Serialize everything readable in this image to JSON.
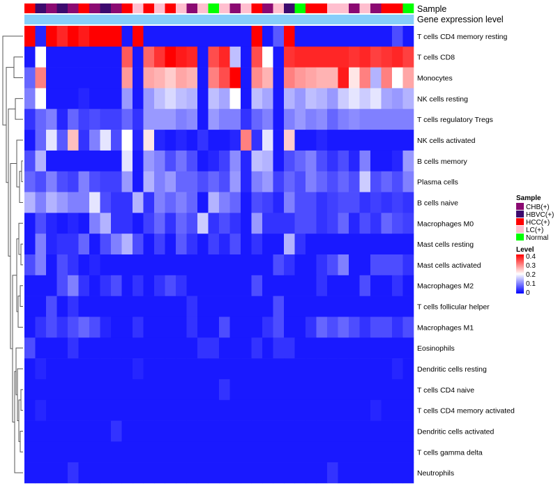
{
  "chart_data": {
    "type": "heatmap",
    "title": "",
    "annotation_labels": {
      "sample": "Sample",
      "level": "Gene expression level"
    },
    "rows": [
      "T cells CD4 memory resting",
      "T cells CD8",
      "Monocytes",
      "NK cells resting",
      "T cells regulatory  Tregs",
      "NK cells activated",
      "B cells memory",
      "Plasma cells",
      "B cells naive",
      "Macrophages M0",
      "Mast cells resting",
      "Mast cells activated",
      "Macrophages M2",
      "T cells follicular helper",
      "Macrophages M1",
      "Eosinophils",
      "Dendritic cells resting",
      "T cells CD4 naive",
      "T cells CD4 memory activated",
      "Dendritic cells activated",
      "T cells gamma delta",
      "Neutrophils"
    ],
    "sample_groups": [
      "HCC(+)",
      "HBVC(+)",
      "CHB(+)",
      "HBVC(+)",
      "CHB(+)",
      "HCC(+)",
      "CHB(+)",
      "HBVC(+)",
      "CHB(+)",
      "HCC(+)",
      "LC(+)",
      "HCC(+)",
      "LC(+)",
      "HCC(+)",
      "LC(+)",
      "CHB(+)",
      "LC(+)",
      "Normal",
      "LC(+)",
      "CHB(+)",
      "LC(+)",
      "HCC(+)",
      "CHB(+)",
      "LC(+)",
      "HBVC(+)",
      "Normal",
      "HCC(+)",
      "HCC(+)",
      "LC(+)",
      "LC(+)",
      "CHB(+)",
      "LC(+)",
      "CHB(+)",
      "HCC(+)",
      "HCC(+)",
      "Normal"
    ],
    "level_values": [
      0.05,
      0.05,
      0.05,
      0.05,
      0.05,
      0.05,
      0.05,
      0.05,
      0.05,
      0.05,
      0.05,
      0.05,
      0.05,
      0.05,
      0.05,
      0.05,
      0.05,
      0.05,
      0.05,
      0.05,
      0.05,
      0.05,
      0.05,
      0.05,
      0.05,
      0.05,
      0.05,
      0.05,
      0.05,
      0.05,
      0.05,
      0.05,
      0.05,
      0.05,
      0.05,
      0.05
    ],
    "values": [
      [
        0.4,
        0.03,
        0.4,
        0.37,
        0.4,
        0.38,
        0.4,
        0.4,
        0.4,
        0.02,
        0.4,
        0.02,
        0.02,
        0.02,
        0.02,
        0.02,
        0.02,
        0.02,
        0.02,
        0.02,
        0.02,
        0.4,
        0.02,
        0.07,
        0.4,
        0.02,
        0.02,
        0.02,
        0.02,
        0.02,
        0.02,
        0.02,
        0.02,
        0.02,
        0.06,
        0.02
      ],
      [
        0.02,
        0.2,
        0.02,
        0.02,
        0.02,
        0.02,
        0.02,
        0.02,
        0.02,
        0.33,
        0.02,
        0.32,
        0.36,
        0.4,
        0.38,
        0.37,
        0.02,
        0.34,
        0.37,
        0.15,
        0.02,
        0.34,
        0.2,
        0.02,
        0.36,
        0.37,
        0.37,
        0.37,
        0.37,
        0.37,
        0.36,
        0.37,
        0.35,
        0.36,
        0.37,
        0.35
      ],
      [
        0.08,
        0.3,
        0.02,
        0.02,
        0.02,
        0.02,
        0.02,
        0.02,
        0.02,
        0.28,
        0.02,
        0.27,
        0.26,
        0.24,
        0.27,
        0.26,
        0.02,
        0.3,
        0.34,
        0.4,
        0.02,
        0.29,
        0.26,
        0.02,
        0.3,
        0.28,
        0.27,
        0.26,
        0.26,
        0.38,
        0.22,
        0.3,
        0.14,
        0.3,
        0.2,
        0.27
      ],
      [
        0.1,
        0.2,
        0.02,
        0.02,
        0.02,
        0.03,
        0.02,
        0.02,
        0.02,
        0.12,
        0.02,
        0.12,
        0.15,
        0.17,
        0.15,
        0.14,
        0.02,
        0.15,
        0.13,
        0.2,
        0.02,
        0.15,
        0.13,
        0.02,
        0.14,
        0.12,
        0.15,
        0.14,
        0.12,
        0.16,
        0.18,
        0.16,
        0.18,
        0.13,
        0.12,
        0.14
      ],
      [
        0.04,
        0.08,
        0.1,
        0.03,
        0.08,
        0.05,
        0.06,
        0.05,
        0.05,
        0.08,
        0.04,
        0.12,
        0.12,
        0.12,
        0.1,
        0.11,
        0.02,
        0.12,
        0.1,
        0.1,
        0.04,
        0.08,
        0.1,
        0.02,
        0.1,
        0.12,
        0.1,
        0.11,
        0.08,
        0.1,
        0.11,
        0.1,
        0.1,
        0.1,
        0.1,
        0.1
      ],
      [
        0.02,
        0.08,
        0.18,
        0.07,
        0.25,
        0.04,
        0.1,
        0.18,
        0.06,
        0.2,
        0.03,
        0.22,
        0.03,
        0.02,
        0.03,
        0.02,
        0.04,
        0.02,
        0.02,
        0.03,
        0.3,
        0.04,
        0.18,
        0.02,
        0.24,
        0.02,
        0.02,
        0.03,
        0.02,
        0.02,
        0.02,
        0.02,
        0.02,
        0.02,
        0.02,
        0.02
      ],
      [
        0.06,
        0.14,
        0.02,
        0.02,
        0.02,
        0.02,
        0.02,
        0.02,
        0.02,
        0.18,
        0.02,
        0.12,
        0.1,
        0.06,
        0.09,
        0.06,
        0.02,
        0.03,
        0.05,
        0.11,
        0.03,
        0.15,
        0.14,
        0.02,
        0.06,
        0.08,
        0.1,
        0.06,
        0.04,
        0.06,
        0.03,
        0.1,
        0.02,
        0.02,
        0.03,
        0.12
      ],
      [
        0.08,
        0.06,
        0.1,
        0.06,
        0.05,
        0.1,
        0.06,
        0.05,
        0.05,
        0.12,
        0.02,
        0.14,
        0.1,
        0.12,
        0.08,
        0.08,
        0.06,
        0.08,
        0.06,
        0.12,
        0.03,
        0.1,
        0.12,
        0.05,
        0.08,
        0.06,
        0.1,
        0.08,
        0.06,
        0.08,
        0.06,
        0.16,
        0.06,
        0.08,
        0.06,
        0.1
      ],
      [
        0.14,
        0.1,
        0.14,
        0.12,
        0.1,
        0.1,
        0.18,
        0.06,
        0.04,
        0.04,
        0.14,
        0.04,
        0.1,
        0.08,
        0.1,
        0.08,
        0.02,
        0.14,
        0.1,
        0.08,
        0.02,
        0.06,
        0.05,
        0.03,
        0.1,
        0.06,
        0.06,
        0.04,
        0.05,
        0.06,
        0.06,
        0.04,
        0.05,
        0.04,
        0.05,
        0.04
      ],
      [
        0.02,
        0.06,
        0.03,
        0.02,
        0.03,
        0.02,
        0.1,
        0.14,
        0.04,
        0.04,
        0.02,
        0.05,
        0.08,
        0.04,
        0.08,
        0.06,
        0.16,
        0.04,
        0.06,
        0.04,
        0.02,
        0.12,
        0.04,
        0.04,
        0.04,
        0.06,
        0.06,
        0.04,
        0.05,
        0.08,
        0.03,
        0.06,
        0.04,
        0.08,
        0.06,
        0.05
      ],
      [
        0.02,
        0.1,
        0.03,
        0.04,
        0.04,
        0.08,
        0.02,
        0.06,
        0.1,
        0.14,
        0.06,
        0.02,
        0.05,
        0.02,
        0.07,
        0.04,
        0.02,
        0.05,
        0.03,
        0.06,
        0.02,
        0.04,
        0.02,
        0.02,
        0.14,
        0.04,
        0.02,
        0.02,
        0.02,
        0.02,
        0.02,
        0.02,
        0.02,
        0.02,
        0.02,
        0.02
      ],
      [
        0.06,
        0.1,
        0.02,
        0.06,
        0.04,
        0.02,
        0.03,
        0.02,
        0.02,
        0.02,
        0.02,
        0.02,
        0.02,
        0.02,
        0.02,
        0.02,
        0.02,
        0.02,
        0.02,
        0.02,
        0.02,
        0.02,
        0.02,
        0.06,
        0.04,
        0.02,
        0.02,
        0.04,
        0.06,
        0.1,
        0.02,
        0.02,
        0.06,
        0.06,
        0.06,
        0.04
      ],
      [
        0.02,
        0.02,
        0.02,
        0.06,
        0.1,
        0.04,
        0.02,
        0.04,
        0.06,
        0.02,
        0.04,
        0.02,
        0.04,
        0.06,
        0.04,
        0.02,
        0.02,
        0.02,
        0.02,
        0.02,
        0.02,
        0.06,
        0.02,
        0.02,
        0.02,
        0.02,
        0.02,
        0.04,
        0.02,
        0.02,
        0.02,
        0.06,
        0.02,
        0.02,
        0.04,
        0.02
      ],
      [
        0.02,
        0.02,
        0.06,
        0.02,
        0.04,
        0.02,
        0.02,
        0.02,
        0.02,
        0.02,
        0.02,
        0.02,
        0.02,
        0.02,
        0.02,
        0.04,
        0.02,
        0.02,
        0.02,
        0.02,
        0.02,
        0.02,
        0.02,
        0.06,
        0.02,
        0.02,
        0.02,
        0.02,
        0.02,
        0.02,
        0.02,
        0.02,
        0.02,
        0.02,
        0.02,
        0.02
      ],
      [
        0.02,
        0.04,
        0.06,
        0.04,
        0.06,
        0.08,
        0.06,
        0.03,
        0.02,
        0.02,
        0.04,
        0.02,
        0.02,
        0.02,
        0.02,
        0.04,
        0.02,
        0.02,
        0.06,
        0.02,
        0.02,
        0.02,
        0.04,
        0.06,
        0.02,
        0.02,
        0.04,
        0.08,
        0.06,
        0.08,
        0.06,
        0.04,
        0.06,
        0.06,
        0.04,
        0.06
      ],
      [
        0.06,
        0.02,
        0.02,
        0.02,
        0.04,
        0.02,
        0.02,
        0.02,
        0.02,
        0.02,
        0.02,
        0.02,
        0.02,
        0.02,
        0.02,
        0.02,
        0.04,
        0.04,
        0.02,
        0.02,
        0.02,
        0.04,
        0.02,
        0.04,
        0.04,
        0.02,
        0.02,
        0.02,
        0.02,
        0.02,
        0.02,
        0.02,
        0.02,
        0.02,
        0.02,
        0.02
      ],
      [
        0.02,
        0.03,
        0.02,
        0.02,
        0.02,
        0.02,
        0.02,
        0.02,
        0.02,
        0.02,
        0.03,
        0.02,
        0.02,
        0.02,
        0.02,
        0.02,
        0.02,
        0.02,
        0.02,
        0.02,
        0.02,
        0.02,
        0.02,
        0.02,
        0.02,
        0.02,
        0.02,
        0.02,
        0.02,
        0.02,
        0.02,
        0.02,
        0.02,
        0.02,
        0.03,
        0.02
      ],
      [
        0.02,
        0.02,
        0.02,
        0.02,
        0.02,
        0.02,
        0.02,
        0.02,
        0.02,
        0.02,
        0.02,
        0.02,
        0.02,
        0.02,
        0.02,
        0.02,
        0.02,
        0.02,
        0.04,
        0.02,
        0.02,
        0.02,
        0.02,
        0.02,
        0.02,
        0.02,
        0.02,
        0.02,
        0.02,
        0.02,
        0.02,
        0.02,
        0.02,
        0.02,
        0.02,
        0.02
      ],
      [
        0.02,
        0.03,
        0.02,
        0.02,
        0.02,
        0.02,
        0.02,
        0.02,
        0.02,
        0.02,
        0.02,
        0.02,
        0.02,
        0.02,
        0.02,
        0.02,
        0.02,
        0.02,
        0.02,
        0.02,
        0.02,
        0.02,
        0.02,
        0.02,
        0.02,
        0.02,
        0.02,
        0.02,
        0.02,
        0.02,
        0.02,
        0.02,
        0.03,
        0.02,
        0.02,
        0.02
      ],
      [
        0.02,
        0.02,
        0.02,
        0.02,
        0.02,
        0.02,
        0.02,
        0.02,
        0.04,
        0.02,
        0.02,
        0.02,
        0.02,
        0.02,
        0.02,
        0.02,
        0.02,
        0.02,
        0.02,
        0.02,
        0.02,
        0.02,
        0.02,
        0.02,
        0.02,
        0.02,
        0.02,
        0.02,
        0.02,
        0.02,
        0.02,
        0.02,
        0.02,
        0.02,
        0.02,
        0.02
      ],
      [
        0.02,
        0.02,
        0.02,
        0.02,
        0.02,
        0.02,
        0.02,
        0.02,
        0.02,
        0.02,
        0.02,
        0.02,
        0.02,
        0.02,
        0.02,
        0.02,
        0.02,
        0.02,
        0.02,
        0.02,
        0.02,
        0.02,
        0.02,
        0.02,
        0.02,
        0.02,
        0.02,
        0.02,
        0.02,
        0.02,
        0.02,
        0.02,
        0.02,
        0.02,
        0.02,
        0.02
      ],
      [
        0.02,
        0.02,
        0.02,
        0.02,
        0.04,
        0.02,
        0.02,
        0.02,
        0.02,
        0.02,
        0.02,
        0.02,
        0.02,
        0.02,
        0.02,
        0.02,
        0.02,
        0.02,
        0.02,
        0.02,
        0.02,
        0.02,
        0.02,
        0.02,
        0.02,
        0.02,
        0.02,
        0.02,
        0.04,
        0.02,
        0.02,
        0.02,
        0.02,
        0.02,
        0.02,
        0.02
      ]
    ],
    "color_scale": {
      "min": 0,
      "max": 0.4,
      "low": "#0000ff",
      "mid": "#ffffff",
      "high": "#ff0000"
    },
    "legends": {
      "sample": {
        "title": "Sample",
        "items": [
          {
            "label": "CHB(+)",
            "color": "#8b0a72"
          },
          {
            "label": "HBVC(+)",
            "color": "#3d0a6e"
          },
          {
            "label": "HCC(+)",
            "color": "#ff0000"
          },
          {
            "label": "LC(+)",
            "color": "#ffbfcf"
          },
          {
            "label": "Normal",
            "color": "#00ff00"
          }
        ]
      },
      "level": {
        "title": "Level",
        "ticks": [
          "0.4",
          "0.3",
          "0.2",
          "0.1",
          "0"
        ]
      }
    },
    "annotation_colors": {
      "level_bar": "#87cefa"
    },
    "dendrogram": "hierarchical clustering of cell types (left side)"
  }
}
